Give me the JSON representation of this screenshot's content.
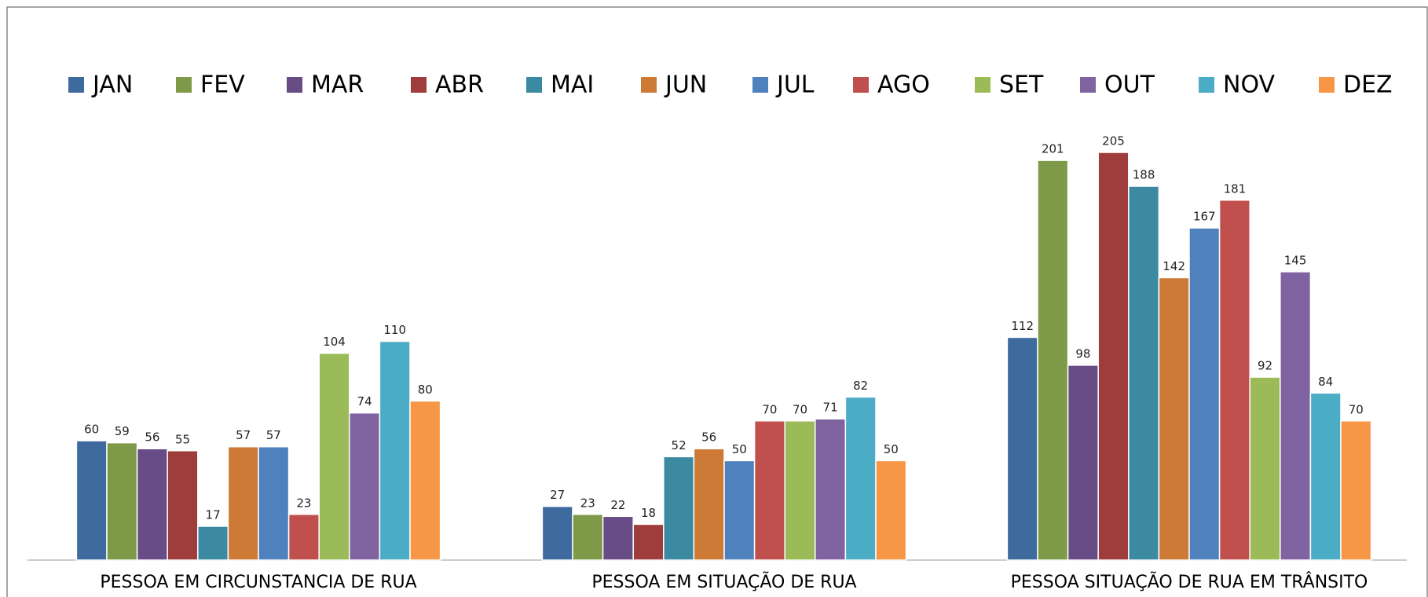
{
  "chart_data": {
    "type": "bar",
    "categories": [
      "PESSOA EM CIRCUNSTANCIA DE RUA",
      "PESSOA EM SITUAÇÃO DE RUA",
      "PESSOA SITUAÇÃO DE RUA EM TRÂNSITO"
    ],
    "series": [
      {
        "name": "JAN",
        "color": "#3f6a9e",
        "values": [
          60,
          27,
          112
        ]
      },
      {
        "name": "FEV",
        "color": "#7e9a48",
        "values": [
          59,
          23,
          201
        ]
      },
      {
        "name": "MAR",
        "color": "#684c86",
        "values": [
          56,
          22,
          98
        ]
      },
      {
        "name": "ABR",
        "color": "#9e3d3b",
        "values": [
          55,
          18,
          205
        ]
      },
      {
        "name": "MAI",
        "color": "#3b8aa1",
        "values": [
          17,
          52,
          188
        ]
      },
      {
        "name": "JUN",
        "color": "#cc7a36",
        "values": [
          57,
          56,
          142
        ]
      },
      {
        "name": "JUL",
        "color": "#4f81bd",
        "values": [
          57,
          50,
          167
        ]
      },
      {
        "name": "AGO",
        "color": "#c0504d",
        "values": [
          23,
          70,
          181
        ]
      },
      {
        "name": "SET",
        "color": "#9bbb59",
        "values": [
          104,
          70,
          92
        ]
      },
      {
        "name": "OUT",
        "color": "#8064a2",
        "values": [
          74,
          71,
          145
        ]
      },
      {
        "name": "NOV",
        "color": "#4bacc6",
        "values": [
          110,
          82,
          84
        ]
      },
      {
        "name": "DEZ",
        "color": "#f79646",
        "values": [
          80,
          50,
          70
        ]
      }
    ],
    "legend": "top"
  }
}
